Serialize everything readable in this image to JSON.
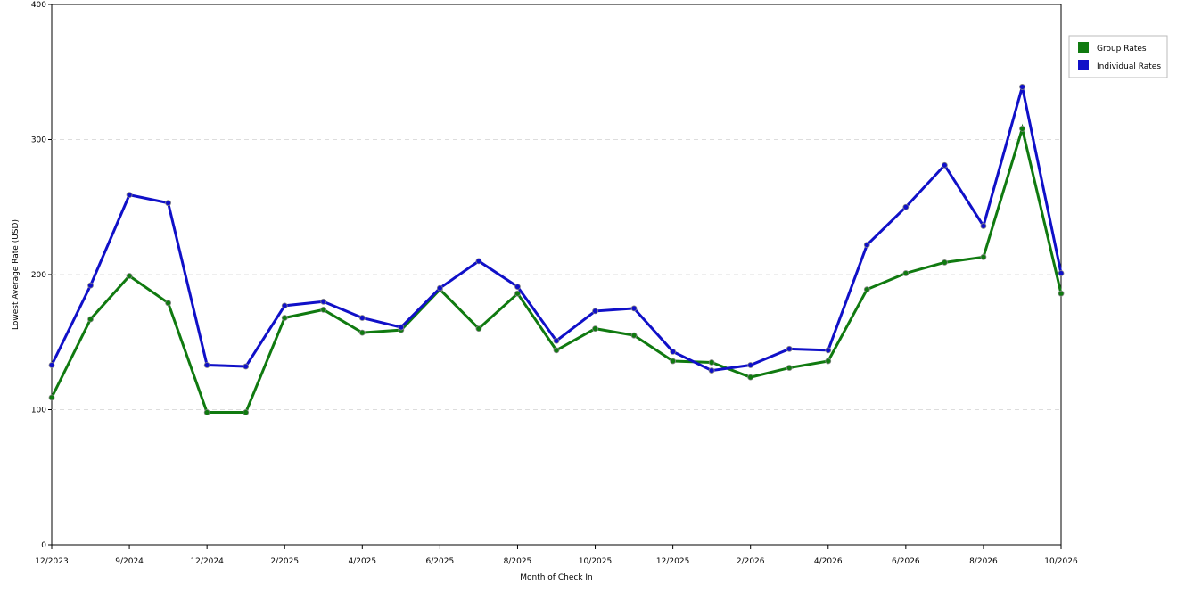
{
  "chart_data": {
    "type": "line",
    "x_label": "Month of Check In",
    "y_label": "Lowest Average Rate (USD)",
    "categories": [
      "12/2023",
      null,
      "9/2024",
      null,
      "12/2024",
      null,
      "2/2025",
      null,
      "4/2025",
      null,
      "6/2025",
      null,
      "8/2025",
      null,
      "10/2025",
      null,
      "12/2025",
      null,
      "2/2026",
      null,
      "4/2026",
      null,
      "6/2026",
      null,
      "8/2026",
      null,
      "10/2026"
    ],
    "series": [
      {
        "name": "Group Rates",
        "color": "#107a10",
        "values": [
          109,
          167,
          199,
          179,
          98,
          98,
          168,
          174,
          157,
          159,
          189,
          160,
          186,
          144,
          160,
          155,
          136,
          135,
          124,
          131,
          136,
          189,
          201,
          209,
          213,
          308,
          186
        ]
      },
      {
        "name": "Individual Rates",
        "color": "#1010c8",
        "values": [
          133,
          192,
          259,
          253,
          133,
          132,
          177,
          180,
          168,
          161,
          190,
          210,
          191,
          151,
          173,
          175,
          143,
          129,
          133,
          145,
          144,
          222,
          250,
          281,
          236,
          339,
          201
        ]
      }
    ],
    "ylim": [
      0,
      400
    ],
    "yticks": [
      0,
      100,
      200,
      300,
      400
    ],
    "grid": true,
    "legend": "right"
  }
}
